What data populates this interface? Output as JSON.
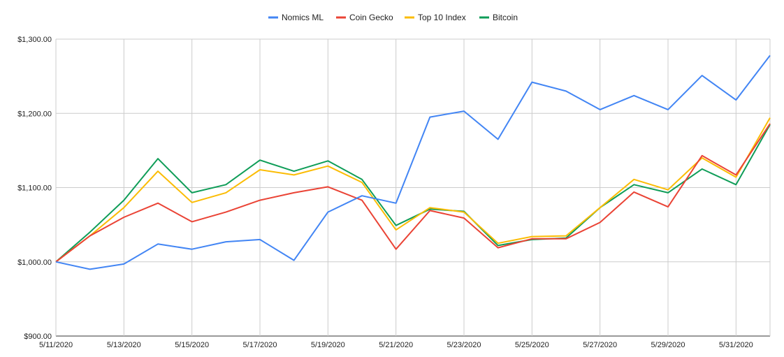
{
  "chart_data": {
    "type": "line",
    "title": "",
    "xlabel": "",
    "ylabel": "",
    "x": [
      "5/11/2020",
      "5/12/2020",
      "5/13/2020",
      "5/14/2020",
      "5/15/2020",
      "5/16/2020",
      "5/17/2020",
      "5/18/2020",
      "5/19/2020",
      "5/20/2020",
      "5/21/2020",
      "5/22/2020",
      "5/23/2020",
      "5/24/2020",
      "5/25/2020",
      "5/26/2020",
      "5/27/2020",
      "5/28/2020",
      "5/29/2020",
      "5/30/2020",
      "5/31/2020",
      "6/1/2020"
    ],
    "x_tick_labels": [
      "5/11/2020",
      "5/13/2020",
      "5/15/2020",
      "5/17/2020",
      "5/19/2020",
      "5/21/2020",
      "5/23/2020",
      "5/25/2020",
      "5/27/2020",
      "5/29/2020",
      "5/31/2020"
    ],
    "y_tick_values": [
      900,
      1000,
      1100,
      1200,
      1300
    ],
    "y_tick_labels": [
      "$900.00",
      "$1,000.00",
      "$1,100.00",
      "$1,200.00",
      "$1,300.00"
    ],
    "ylim": [
      900,
      1300
    ],
    "grid": true,
    "legend_position": "top",
    "series": [
      {
        "name": "Nomics ML",
        "color": "#4285f4",
        "values": [
          1000,
          990,
          997,
          1024,
          1017,
          1027,
          1030,
          1002,
          1067,
          1089,
          1079,
          1195,
          1203,
          1165,
          1242,
          1230,
          1205,
          1224,
          1205,
          1251,
          1218,
          1278
        ]
      },
      {
        "name": "Coin Gecko",
        "color": "#ea4335",
        "values": [
          1000,
          1035,
          1060,
          1079,
          1054,
          1067,
          1083,
          1093,
          1101,
          1083,
          1017,
          1069,
          1059,
          1019,
          1031,
          1031,
          1053,
          1094,
          1074,
          1143,
          1117,
          1186
        ]
      },
      {
        "name": "Top 10 Index",
        "color": "#fbbc04",
        "values": [
          1000,
          1035,
          1073,
          1122,
          1080,
          1093,
          1124,
          1117,
          1129,
          1107,
          1043,
          1073,
          1067,
          1025,
          1034,
          1035,
          1073,
          1111,
          1097,
          1140,
          1114,
          1194
        ]
      },
      {
        "name": "Bitcoin",
        "color": "#0f9d58",
        "values": [
          1000,
          1040,
          1083,
          1139,
          1093,
          1104,
          1137,
          1122,
          1136,
          1111,
          1049,
          1071,
          1068,
          1022,
          1030,
          1032,
          1073,
          1104,
          1093,
          1125,
          1104,
          1185
        ]
      }
    ]
  }
}
